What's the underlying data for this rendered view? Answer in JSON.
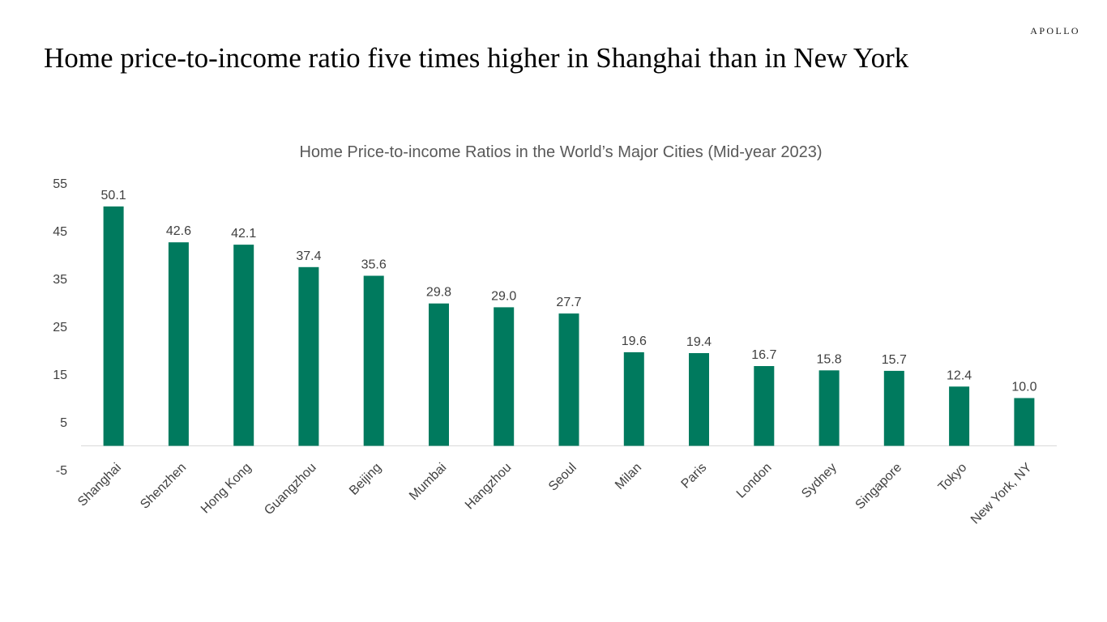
{
  "brand": "APOLLO",
  "headline": "Home price-to-income ratio five times higher in Shanghai than in New York",
  "colors": {
    "bar": "#007A5E",
    "axis_text": "#404040",
    "title_text": "#595959",
    "axis_line": "#D9D9D9"
  },
  "chart_data": {
    "type": "bar",
    "title": "Home Price-to-income Ratios in the World’s Major Cities (Mid-year 2023)",
    "categories": [
      "Shanghai",
      "Shenzhen",
      "Hong Kong",
      "Guangzhou",
      "Beijing",
      "Mumbai",
      "Hangzhou",
      "Seoul",
      "Milan",
      "Paris",
      "London",
      "Sydney",
      "Singapore",
      "Tokyo",
      "New York, NY"
    ],
    "values": [
      50.1,
      42.6,
      42.1,
      37.4,
      35.6,
      29.8,
      29.0,
      27.7,
      19.6,
      19.4,
      16.7,
      15.8,
      15.7,
      12.4,
      10.0
    ],
    "value_labels": [
      "50.1",
      "42.6",
      "42.1",
      "37.4",
      "35.6",
      "29.8",
      "29.0",
      "27.7",
      "19.6",
      "19.4",
      "16.7",
      "15.8",
      "15.7",
      "12.4",
      "10.0"
    ],
    "xlabel": "",
    "ylabel": "",
    "ylim": [
      -5,
      55
    ],
    "yticks": [
      -5,
      5,
      15,
      25,
      35,
      45,
      55
    ],
    "grid": false,
    "legend": "none"
  }
}
